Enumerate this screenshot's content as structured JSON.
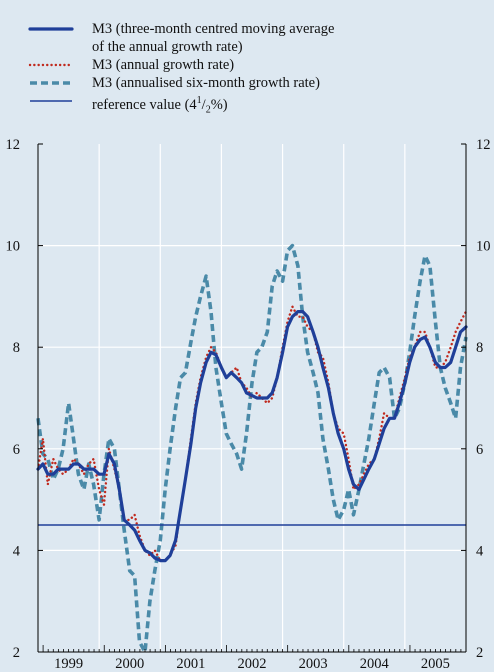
{
  "chart_data": {
    "type": "line",
    "ylim": [
      2,
      12
    ],
    "yticks": [
      "2",
      "4",
      "6",
      "8",
      "10",
      "12"
    ],
    "x_range": [
      1998.92,
      2005.92
    ],
    "xlabels": [
      "1999",
      "2000",
      "2001",
      "2002",
      "2003",
      "2004",
      "2005"
    ],
    "grid": true,
    "legend_position": "top-left",
    "colors": {
      "background": "#dde8f1",
      "dark_blue": "#1f3f99",
      "red": "#c02a1e",
      "teal": "#4a8aa8",
      "grid": "#ffffff",
      "axis": "#000000"
    },
    "legend": [
      {
        "lines": [
          "M3 (three-month centred moving average",
          "of the annual growth rate)"
        ],
        "style": "thick-solid",
        "color": "#1f3f99"
      },
      {
        "lines": [
          "M3 (annual growth rate)"
        ],
        "style": "dotted",
        "color": "#c02a1e"
      },
      {
        "lines": [
          "M3 (annualised six-month growth rate)"
        ],
        "style": "dashed",
        "color": "#4a8aa8"
      },
      {
        "lines": [
          "reference value (4",
          "1",
          "/",
          "2",
          "%)"
        ],
        "style": "thin-solid",
        "color": "#1f3f99",
        "fraction": true
      }
    ],
    "series": [
      {
        "style": "dashed",
        "color": "#4a8aa8",
        "points": [
          [
            1998.92,
            6.6
          ],
          [
            1999.0,
            5.9
          ],
          [
            1999.08,
            5.8
          ],
          [
            1999.17,
            5.4
          ],
          [
            1999.25,
            5.6
          ],
          [
            1999.33,
            6.0
          ],
          [
            1999.42,
            6.9
          ],
          [
            1999.5,
            6.2
          ],
          [
            1999.58,
            5.5
          ],
          [
            1999.67,
            5.2
          ],
          [
            1999.75,
            5.7
          ],
          [
            1999.83,
            5.3
          ],
          [
            1999.92,
            4.6
          ],
          [
            2000.0,
            5.5
          ],
          [
            2000.08,
            6.2
          ],
          [
            2000.17,
            6.0
          ],
          [
            2000.25,
            5.2
          ],
          [
            2000.33,
            4.4
          ],
          [
            2000.42,
            3.6
          ],
          [
            2000.5,
            3.5
          ],
          [
            2000.58,
            2.2
          ],
          [
            2000.67,
            2.0
          ],
          [
            2000.75,
            3.0
          ],
          [
            2000.83,
            3.6
          ],
          [
            2000.92,
            4.2
          ],
          [
            2001.0,
            5.2
          ],
          [
            2001.08,
            6.0
          ],
          [
            2001.17,
            6.8
          ],
          [
            2001.25,
            7.4
          ],
          [
            2001.33,
            7.5
          ],
          [
            2001.42,
            8.1
          ],
          [
            2001.5,
            8.6
          ],
          [
            2001.58,
            9.0
          ],
          [
            2001.67,
            9.4
          ],
          [
            2001.75,
            8.7
          ],
          [
            2001.83,
            7.6
          ],
          [
            2001.92,
            6.9
          ],
          [
            2002.0,
            6.3
          ],
          [
            2002.08,
            6.1
          ],
          [
            2002.17,
            5.9
          ],
          [
            2002.25,
            5.6
          ],
          [
            2002.33,
            6.3
          ],
          [
            2002.42,
            7.3
          ],
          [
            2002.5,
            7.9
          ],
          [
            2002.58,
            8.0
          ],
          [
            2002.67,
            8.3
          ],
          [
            2002.75,
            9.2
          ],
          [
            2002.83,
            9.5
          ],
          [
            2002.92,
            9.3
          ],
          [
            2003.0,
            9.9
          ],
          [
            2003.08,
            10.0
          ],
          [
            2003.17,
            9.6
          ],
          [
            2003.25,
            8.6
          ],
          [
            2003.33,
            7.9
          ],
          [
            2003.42,
            7.5
          ],
          [
            2003.5,
            7.1
          ],
          [
            2003.58,
            6.2
          ],
          [
            2003.67,
            5.6
          ],
          [
            2003.75,
            5.0
          ],
          [
            2003.83,
            4.6
          ],
          [
            2003.92,
            4.8
          ],
          [
            2004.0,
            5.2
          ],
          [
            2004.08,
            4.7
          ],
          [
            2004.17,
            5.2
          ],
          [
            2004.25,
            5.7
          ],
          [
            2004.33,
            6.2
          ],
          [
            2004.42,
            6.9
          ],
          [
            2004.5,
            7.5
          ],
          [
            2004.58,
            7.6
          ],
          [
            2004.67,
            7.4
          ],
          [
            2004.75,
            6.6
          ],
          [
            2004.83,
            6.8
          ],
          [
            2004.92,
            7.3
          ],
          [
            2005.0,
            7.9
          ],
          [
            2005.08,
            8.6
          ],
          [
            2005.17,
            9.3
          ],
          [
            2005.25,
            9.8
          ],
          [
            2005.33,
            9.6
          ],
          [
            2005.42,
            8.5
          ],
          [
            2005.5,
            7.6
          ],
          [
            2005.58,
            7.2
          ],
          [
            2005.67,
            6.9
          ],
          [
            2005.75,
            6.6
          ],
          [
            2005.83,
            7.6
          ],
          [
            2005.92,
            8.2
          ]
        ]
      },
      {
        "style": "dotted",
        "color": "#c02a1e",
        "points": [
          [
            1998.92,
            5.6
          ],
          [
            1999.0,
            6.2
          ],
          [
            1999.08,
            5.3
          ],
          [
            1999.17,
            5.8
          ],
          [
            1999.25,
            5.6
          ],
          [
            1999.33,
            5.5
          ],
          [
            1999.42,
            5.6
          ],
          [
            1999.5,
            5.8
          ],
          [
            1999.58,
            5.7
          ],
          [
            1999.67,
            5.5
          ],
          [
            1999.75,
            5.7
          ],
          [
            1999.83,
            5.8
          ],
          [
            1999.92,
            5.2
          ],
          [
            2000.0,
            4.9
          ],
          [
            2000.08,
            6.0
          ],
          [
            2000.17,
            5.6
          ],
          [
            2000.25,
            5.2
          ],
          [
            2000.33,
            4.6
          ],
          [
            2000.42,
            4.6
          ],
          [
            2000.5,
            4.7
          ],
          [
            2000.58,
            4.3
          ],
          [
            2000.67,
            4.0
          ],
          [
            2000.75,
            3.9
          ],
          [
            2000.83,
            4.0
          ],
          [
            2000.92,
            3.8
          ],
          [
            2001.0,
            3.8
          ],
          [
            2001.08,
            3.9
          ],
          [
            2001.17,
            4.1
          ],
          [
            2001.25,
            4.8
          ],
          [
            2001.33,
            5.4
          ],
          [
            2001.42,
            6.2
          ],
          [
            2001.5,
            6.9
          ],
          [
            2001.58,
            7.4
          ],
          [
            2001.67,
            7.8
          ],
          [
            2001.75,
            8.0
          ],
          [
            2001.83,
            7.9
          ],
          [
            2001.92,
            7.6
          ],
          [
            2002.0,
            7.4
          ],
          [
            2002.08,
            7.5
          ],
          [
            2002.17,
            7.6
          ],
          [
            2002.25,
            7.3
          ],
          [
            2002.33,
            7.2
          ],
          [
            2002.42,
            7.0
          ],
          [
            2002.5,
            7.1
          ],
          [
            2002.58,
            7.0
          ],
          [
            2002.67,
            6.9
          ],
          [
            2002.75,
            7.0
          ],
          [
            2002.83,
            7.4
          ],
          [
            2002.92,
            8.0
          ],
          [
            2003.0,
            8.5
          ],
          [
            2003.08,
            8.8
          ],
          [
            2003.17,
            8.6
          ],
          [
            2003.25,
            8.6
          ],
          [
            2003.33,
            8.4
          ],
          [
            2003.42,
            8.3
          ],
          [
            2003.5,
            7.9
          ],
          [
            2003.58,
            7.8
          ],
          [
            2003.67,
            7.3
          ],
          [
            2003.75,
            6.7
          ],
          [
            2003.83,
            6.4
          ],
          [
            2003.92,
            6.3
          ],
          [
            2004.0,
            5.8
          ],
          [
            2004.08,
            5.2
          ],
          [
            2004.17,
            5.3
          ],
          [
            2004.25,
            5.5
          ],
          [
            2004.33,
            5.7
          ],
          [
            2004.42,
            5.8
          ],
          [
            2004.5,
            6.2
          ],
          [
            2004.58,
            6.7
          ],
          [
            2004.67,
            6.6
          ],
          [
            2004.75,
            6.6
          ],
          [
            2004.83,
            7.0
          ],
          [
            2004.92,
            7.4
          ],
          [
            2005.0,
            7.8
          ],
          [
            2005.08,
            8.0
          ],
          [
            2005.17,
            8.3
          ],
          [
            2005.25,
            8.3
          ],
          [
            2005.33,
            8.0
          ],
          [
            2005.42,
            7.6
          ],
          [
            2005.5,
            7.6
          ],
          [
            2005.58,
            7.7
          ],
          [
            2005.67,
            8.0
          ],
          [
            2005.75,
            8.3
          ],
          [
            2005.83,
            8.5
          ],
          [
            2005.92,
            8.7
          ]
        ]
      },
      {
        "style": "thick-solid",
        "color": "#1f3f99",
        "points": [
          [
            1998.92,
            5.6
          ],
          [
            1999.0,
            5.7
          ],
          [
            1999.08,
            5.5
          ],
          [
            1999.17,
            5.5
          ],
          [
            1999.25,
            5.6
          ],
          [
            1999.33,
            5.6
          ],
          [
            1999.42,
            5.6
          ],
          [
            1999.5,
            5.7
          ],
          [
            1999.58,
            5.7
          ],
          [
            1999.67,
            5.6
          ],
          [
            1999.75,
            5.6
          ],
          [
            1999.83,
            5.6
          ],
          [
            1999.92,
            5.5
          ],
          [
            2000.0,
            5.5
          ],
          [
            2000.08,
            5.9
          ],
          [
            2000.17,
            5.7
          ],
          [
            2000.25,
            5.2
          ],
          [
            2000.33,
            4.6
          ],
          [
            2000.42,
            4.5
          ],
          [
            2000.5,
            4.4
          ],
          [
            2000.58,
            4.2
          ],
          [
            2000.67,
            4.0
          ],
          [
            2000.75,
            3.95
          ],
          [
            2000.83,
            3.85
          ],
          [
            2000.92,
            3.8
          ],
          [
            2001.0,
            3.8
          ],
          [
            2001.08,
            3.9
          ],
          [
            2001.17,
            4.2
          ],
          [
            2001.25,
            4.8
          ],
          [
            2001.33,
            5.4
          ],
          [
            2001.42,
            6.1
          ],
          [
            2001.5,
            6.8
          ],
          [
            2001.58,
            7.3
          ],
          [
            2001.67,
            7.7
          ],
          [
            2001.75,
            7.9
          ],
          [
            2001.83,
            7.85
          ],
          [
            2001.92,
            7.6
          ],
          [
            2002.0,
            7.4
          ],
          [
            2002.08,
            7.5
          ],
          [
            2002.17,
            7.4
          ],
          [
            2002.25,
            7.3
          ],
          [
            2002.33,
            7.1
          ],
          [
            2002.42,
            7.05
          ],
          [
            2002.5,
            7.0
          ],
          [
            2002.58,
            7.0
          ],
          [
            2002.67,
            7.0
          ],
          [
            2002.75,
            7.1
          ],
          [
            2002.83,
            7.4
          ],
          [
            2002.92,
            7.9
          ],
          [
            2003.0,
            8.4
          ],
          [
            2003.08,
            8.6
          ],
          [
            2003.17,
            8.7
          ],
          [
            2003.25,
            8.7
          ],
          [
            2003.33,
            8.6
          ],
          [
            2003.42,
            8.3
          ],
          [
            2003.5,
            8.0
          ],
          [
            2003.58,
            7.6
          ],
          [
            2003.67,
            7.2
          ],
          [
            2003.75,
            6.7
          ],
          [
            2003.83,
            6.3
          ],
          [
            2003.92,
            6.0
          ],
          [
            2004.0,
            5.6
          ],
          [
            2004.08,
            5.3
          ],
          [
            2004.17,
            5.2
          ],
          [
            2004.25,
            5.4
          ],
          [
            2004.33,
            5.6
          ],
          [
            2004.42,
            5.8
          ],
          [
            2004.5,
            6.1
          ],
          [
            2004.58,
            6.4
          ],
          [
            2004.67,
            6.6
          ],
          [
            2004.75,
            6.6
          ],
          [
            2004.83,
            6.9
          ],
          [
            2004.92,
            7.3
          ],
          [
            2005.0,
            7.7
          ],
          [
            2005.08,
            8.0
          ],
          [
            2005.17,
            8.15
          ],
          [
            2005.25,
            8.2
          ],
          [
            2005.33,
            8.0
          ],
          [
            2005.42,
            7.7
          ],
          [
            2005.5,
            7.6
          ],
          [
            2005.58,
            7.6
          ],
          [
            2005.67,
            7.7
          ],
          [
            2005.75,
            8.0
          ],
          [
            2005.83,
            8.3
          ],
          [
            2005.92,
            8.4
          ]
        ]
      },
      {
        "style": "thin-solid",
        "color": "#1f3f99",
        "points": [
          [
            1998.92,
            4.5
          ],
          [
            2005.92,
            4.5
          ]
        ]
      }
    ]
  }
}
